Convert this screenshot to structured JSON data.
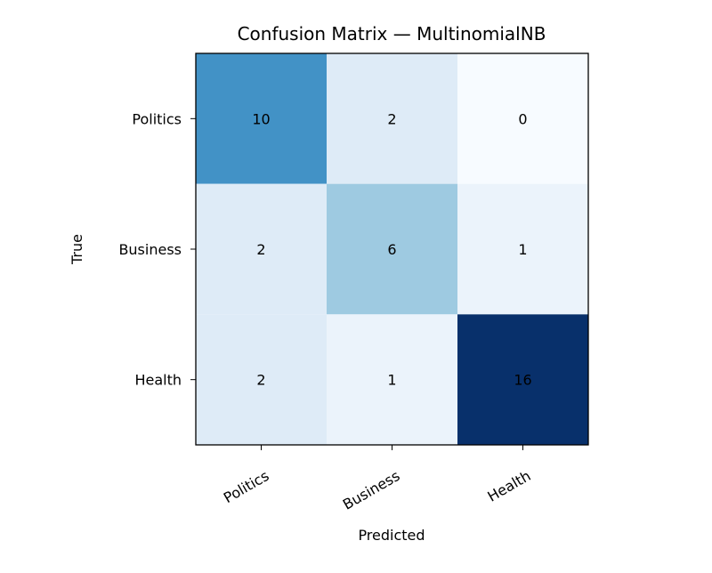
{
  "chart_data": {
    "type": "heatmap",
    "title": "Confusion Matrix — MultinomialNB",
    "xlabel": "Predicted",
    "ylabel": "True",
    "x_categories": [
      "Politics",
      "Business",
      "Health"
    ],
    "y_categories": [
      "Politics",
      "Business",
      "Health"
    ],
    "values": [
      [
        10,
        2,
        0
      ],
      [
        2,
        6,
        1
      ],
      [
        2,
        1,
        16
      ]
    ],
    "colormap": "Blues",
    "value_range": [
      0,
      16
    ],
    "cell_label_color": "#000000",
    "grid": false
  }
}
